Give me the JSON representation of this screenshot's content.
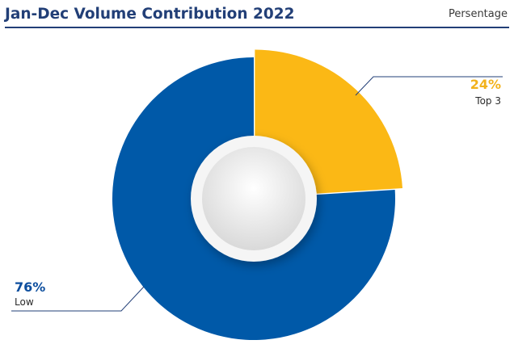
{
  "header": {
    "title": "Jan-Dec Volume Contribution 2022",
    "unit_label": "Persentage"
  },
  "chart_data": {
    "type": "pie",
    "title": "Jan-Dec Volume Contribution 2022",
    "unit": "Persentage",
    "categories": [
      "Top 3",
      "Low"
    ],
    "values": [
      24,
      76
    ],
    "labels": [
      "24%",
      "76%"
    ],
    "colors": [
      "#fbb815",
      "#0059a8"
    ],
    "label_colors": [
      "#f2b21c",
      "#0d4e9e"
    ],
    "exploded": "Top 3",
    "legend": "none"
  }
}
